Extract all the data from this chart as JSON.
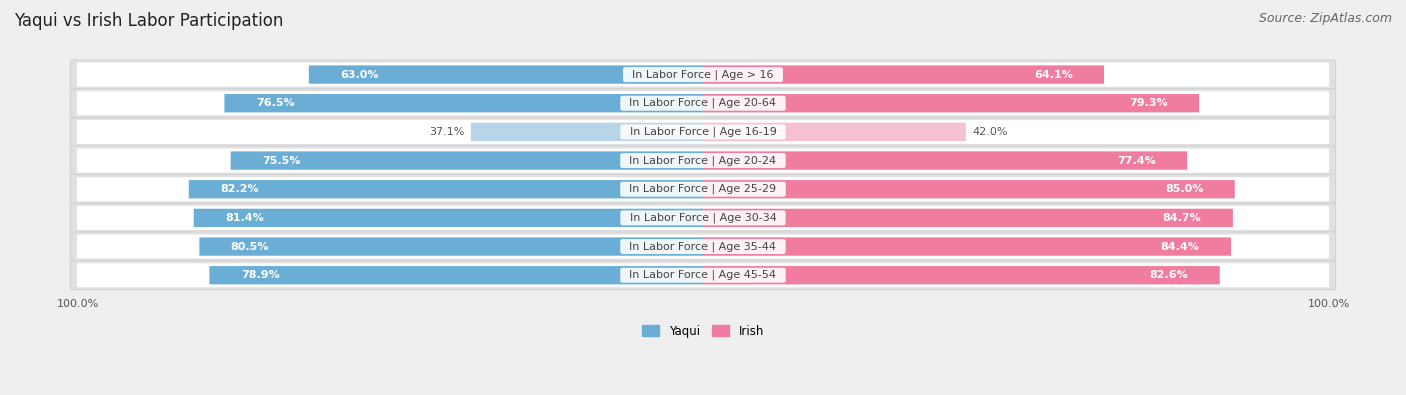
{
  "title": "Yaqui vs Irish Labor Participation",
  "source": "Source: ZipAtlas.com",
  "categories": [
    "In Labor Force | Age > 16",
    "In Labor Force | Age 20-64",
    "In Labor Force | Age 16-19",
    "In Labor Force | Age 20-24",
    "In Labor Force | Age 25-29",
    "In Labor Force | Age 30-34",
    "In Labor Force | Age 35-44",
    "In Labor Force | Age 45-54"
  ],
  "yaqui_values": [
    63.0,
    76.5,
    37.1,
    75.5,
    82.2,
    81.4,
    80.5,
    78.9
  ],
  "irish_values": [
    64.1,
    79.3,
    42.0,
    77.4,
    85.0,
    84.7,
    84.4,
    82.6
  ],
  "yaqui_color": "#6aaed6",
  "yaqui_color_light": "#b8d4e8",
  "irish_color": "#f07ca0",
  "irish_color_light": "#f5c0d0",
  "row_bg_color": "#e8e8e8",
  "row_inner_color": "#f5f5f5",
  "bar_height": 0.62,
  "max_val": 100.0,
  "legend_yaqui": "Yaqui",
  "legend_irish": "Irish",
  "title_fontsize": 12,
  "source_fontsize": 9,
  "label_fontsize": 8,
  "value_fontsize": 8,
  "axis_fontsize": 8
}
